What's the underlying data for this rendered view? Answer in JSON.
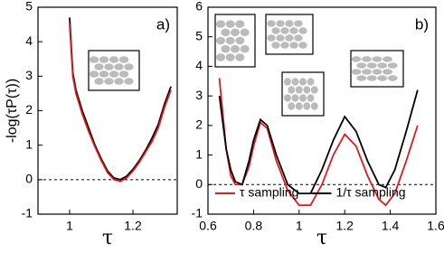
{
  "chart_data": [
    {
      "type": "line",
      "panel_label": "a)",
      "x_label": "τ",
      "y_label": "-log(τP(τ))",
      "xlim": [
        0.9,
        1.34
      ],
      "ylim": [
        -1,
        5
      ],
      "xticks": [
        1,
        1.2
      ],
      "yticks": [
        -1,
        0,
        1,
        2,
        3,
        4,
        5
      ],
      "hline": 0,
      "series": [
        {
          "color": "#000000",
          "x": [
            1.0,
            1.01,
            1.02,
            1.04,
            1.06,
            1.08,
            1.1,
            1.12,
            1.14,
            1.16,
            1.18,
            1.2,
            1.22,
            1.24,
            1.26,
            1.28,
            1.3,
            1.32
          ],
          "values": [
            4.7,
            3.1,
            2.6,
            2.0,
            1.5,
            1.0,
            0.6,
            0.25,
            0.05,
            0.0,
            0.1,
            0.3,
            0.55,
            0.85,
            1.2,
            1.6,
            2.2,
            2.7
          ]
        },
        {
          "color": "#e31a1c",
          "x": [
            1.0,
            1.01,
            1.02,
            1.04,
            1.06,
            1.08,
            1.1,
            1.12,
            1.14,
            1.16,
            1.18,
            1.2,
            1.22,
            1.24,
            1.26,
            1.28,
            1.3,
            1.32
          ],
          "values": [
            4.5,
            3.0,
            2.5,
            1.9,
            1.4,
            0.95,
            0.55,
            0.2,
            0.0,
            -0.05,
            0.05,
            0.25,
            0.5,
            0.8,
            1.1,
            1.5,
            2.1,
            2.6
          ]
        }
      ]
    },
    {
      "type": "line",
      "panel_label": "b)",
      "x_label": "τ",
      "xlim": [
        0.6,
        1.6
      ],
      "ylim": [
        -1,
        6
      ],
      "xticks": [
        0.6,
        0.8,
        1,
        1.2,
        1.4,
        1.6
      ],
      "yticks": [
        -1,
        0,
        1,
        2,
        3,
        4,
        5,
        6
      ],
      "hline": 0,
      "series": [
        {
          "name": "τ sampling",
          "color": "#e31a1c",
          "x": [
            0.65,
            0.68,
            0.7,
            0.72,
            0.75,
            0.78,
            0.8,
            0.83,
            0.86,
            0.9,
            0.95,
            1.0,
            1.05,
            1.1,
            1.15,
            1.2,
            1.25,
            1.3,
            1.35,
            1.38,
            1.42,
            1.47,
            1.52
          ],
          "values": [
            3.6,
            1.2,
            0.3,
            0.0,
            0.0,
            0.6,
            1.3,
            2.1,
            1.9,
            0.8,
            -0.2,
            -0.7,
            -0.7,
            0.0,
            1.0,
            1.7,
            1.3,
            0.3,
            -0.5,
            -0.7,
            -0.3,
            0.8,
            2.0
          ]
        },
        {
          "name": "1/τ  sampling",
          "color": "#000000",
          "x": [
            0.65,
            0.68,
            0.7,
            0.72,
            0.75,
            0.78,
            0.8,
            0.83,
            0.86,
            0.9,
            0.95,
            1.0,
            1.05,
            1.1,
            1.15,
            1.2,
            1.25,
            1.3,
            1.35,
            1.38,
            1.42,
            1.47,
            1.52
          ],
          "values": [
            3.0,
            1.2,
            0.5,
            0.1,
            0.0,
            0.8,
            1.5,
            2.2,
            2.0,
            1.0,
            0.0,
            -0.3,
            -0.3,
            0.5,
            1.5,
            2.3,
            1.8,
            0.8,
            0.0,
            -0.1,
            0.5,
            1.8,
            3.2
          ]
        }
      ]
    }
  ]
}
